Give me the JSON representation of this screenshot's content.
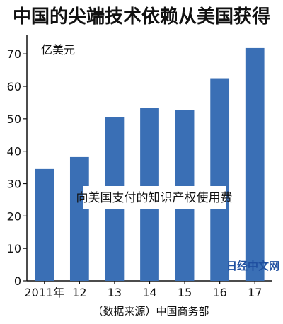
{
  "chart_data": {
    "type": "bar",
    "title": "中国的尖端技术依赖从美国获得",
    "unit_label": "亿美元",
    "categories": [
      "2011年",
      "12",
      "13",
      "14",
      "15",
      "16",
      "17"
    ],
    "values": [
      34.5,
      38.2,
      50.5,
      53.3,
      52.6,
      62.5,
      71.8
    ],
    "ylim": [
      0,
      72
    ],
    "yticks": [
      0,
      10,
      20,
      30,
      40,
      50,
      60,
      70
    ],
    "annotation": "向美国支付的知识产权使用费",
    "source": "（数据来源）中国商务部",
    "grid": false,
    "legend": "none",
    "bar_color": "#3a6fb5"
  },
  "watermark": "日经中文网"
}
